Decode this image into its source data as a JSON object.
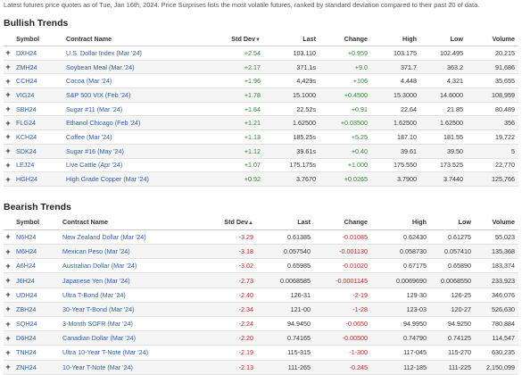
{
  "intro_text": "Latest futures price quotes as of Tue, Jan 16th, 2024. Price Surprises lists the most volatile futures, ranked by standard deviation compared to their past 20 of data.",
  "colors": {
    "positive": "#2e8b2e",
    "negative": "#cc2222",
    "link": "#2a5db0"
  },
  "columns": {
    "symbol": "Symbol",
    "contract": "Contract Name",
    "stddev": "Std Dev",
    "last": "Last",
    "change": "Change",
    "high": "High",
    "low": "Low",
    "volume": "Volume"
  },
  "bullish": {
    "title": "Bullish Trends",
    "sort_icon": "sort-down-icon",
    "rows": [
      {
        "symbol": "DXH24",
        "name": "U.S. Dollar Index (Mar '24)",
        "stddev": "+2.54",
        "last": "103.110",
        "change": "+0.959",
        "high": "103.175",
        "low": "102.495",
        "volume": "20,215"
      },
      {
        "symbol": "ZMH24",
        "name": "Soybean Meal (Mar '24)",
        "stddev": "+2.17",
        "last": "371.1s",
        "change": "+9.0",
        "high": "371.7",
        "low": "363.2",
        "volume": "91,686"
      },
      {
        "symbol": "CCH24",
        "name": "Cocoa (Mar '24)",
        "stddev": "+1.96",
        "last": "4,429s",
        "change": "+106",
        "high": "4,448",
        "low": "4,321",
        "volume": "35,655"
      },
      {
        "symbol": "VIG24",
        "name": "S&P 500 VIX (Feb '24)",
        "stddev": "+1.78",
        "last": "15.1000",
        "change": "+0.4500",
        "high": "15.3000",
        "low": "14.6000",
        "volume": "108,959"
      },
      {
        "symbol": "SBH24",
        "name": "Sugar #11 (Mar '24)",
        "stddev": "+1.64",
        "last": "22.52s",
        "change": "+0.91",
        "high": "22.64",
        "low": "21.85",
        "volume": "80,489"
      },
      {
        "symbol": "FLG24",
        "name": "Ethanol Chicago (Feb '24)",
        "stddev": "+1.21",
        "last": "1.62500",
        "change": "+0.03500",
        "high": "1.62500",
        "low": "1.62500",
        "volume": "356"
      },
      {
        "symbol": "KCH24",
        "name": "Coffee (Mar '24)",
        "stddev": "+1.13",
        "last": "185.25s",
        "change": "+5.25",
        "high": "187.10",
        "low": "181.55",
        "volume": "19,722"
      },
      {
        "symbol": "SDK24",
        "name": "Sugar #16 (May '24)",
        "stddev": "+1.12",
        "last": "39.61s",
        "change": "+0.40",
        "high": "39.61",
        "low": "39.50",
        "volume": "5"
      },
      {
        "symbol": "LEJ24",
        "name": "Live Cattle (Apr '24)",
        "stddev": "+1.07",
        "last": "175.175s",
        "change": "+1.000",
        "high": "175.550",
        "low": "173.525",
        "volume": "22,770"
      },
      {
        "symbol": "HGH24",
        "name": "High Grade Copper (Mar '24)",
        "stddev": "+0.92",
        "last": "3.7670",
        "change": "+0.0265",
        "high": "3.7900",
        "low": "3.7440",
        "volume": "125,766"
      }
    ]
  },
  "bearish": {
    "title": "Bearish Trends",
    "sort_icon": "sort-up-icon",
    "rows": [
      {
        "symbol": "N6H24",
        "name": "New Zealand Dollar (Mar '24)",
        "stddev": "-3.29",
        "last": "0.61385",
        "change": "-0.01085",
        "high": "0.62430",
        "low": "0.61275",
        "volume": "55,023"
      },
      {
        "symbol": "M6H24",
        "name": "Mexican Peso (Mar '24)",
        "stddev": "-3.18",
        "last": "0.057540",
        "change": "-0.001130",
        "high": "0.058730",
        "low": "0.057410",
        "volume": "135,368"
      },
      {
        "symbol": "A6H24",
        "name": "Australian Dollar (Mar '24)",
        "stddev": "-3.02",
        "last": "0.65985",
        "change": "-0.01020",
        "high": "0.67175",
        "low": "0.65890",
        "volume": "183,374"
      },
      {
        "symbol": "J6H24",
        "name": "Japanese Yen (Mar '24)",
        "stddev": "-2.73",
        "last": "0.0068585",
        "change": "-0.0001145",
        "high": "0.0069690",
        "low": "0.0068550",
        "volume": "233,923"
      },
      {
        "symbol": "UDH24",
        "name": "Ultra T-Bond (Mar '24)",
        "stddev": "-2.40",
        "last": "126-31",
        "change": "-2-19",
        "high": "129-30",
        "low": "126-25",
        "volume": "346,076"
      },
      {
        "symbol": "ZBH24",
        "name": "30-Year T-Bond (Mar '24)",
        "stddev": "-2.34",
        "last": "121-00",
        "change": "-1-28",
        "high": "123-03",
        "low": "120-27",
        "volume": "526,630"
      },
      {
        "symbol": "SQH24",
        "name": "3-Month SOFR (Mar '24)",
        "stddev": "-2.24",
        "last": "94.9450",
        "change": "-0.0650",
        "high": "94.9950",
        "low": "94.9250",
        "volume": "780,884"
      },
      {
        "symbol": "D6H24",
        "name": "Canadian Dollar (Mar '24)",
        "stddev": "-2.20",
        "last": "0.74165",
        "change": "-0.00500",
        "high": "0.74790",
        "low": "0.74125",
        "volume": "114,547"
      },
      {
        "symbol": "TNH24",
        "name": "Ultra 10-Year T-Note (Mar '24)",
        "stddev": "-2.19",
        "last": "115-315",
        "change": "-1-300",
        "high": "117-045",
        "low": "115-270",
        "volume": "630,235"
      },
      {
        "symbol": "ZNH24",
        "name": "10-Year T-Note (Mar '24)",
        "stddev": "-2.13",
        "last": "111-265",
        "change": "-0.245",
        "high": "112-185",
        "low": "111-225",
        "volume": "2,150,099"
      }
    ]
  }
}
